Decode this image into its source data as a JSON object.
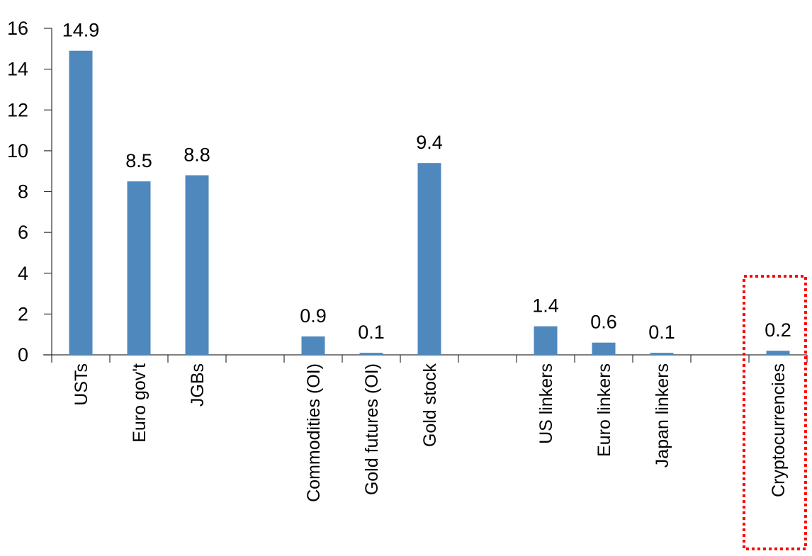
{
  "chart_data": {
    "type": "bar",
    "title": "",
    "xlabel": "",
    "ylabel": "",
    "ylim": [
      0,
      16
    ],
    "yticks": [
      0,
      2,
      4,
      6,
      8,
      10,
      12,
      14,
      16
    ],
    "grid": false,
    "categories": [
      "USTs",
      "Euro gov't",
      "JGBs",
      "",
      "Commodities (OI)",
      "Gold futures (OI)",
      "Gold stock",
      "",
      "US linkers",
      "Euro linkers",
      "Japan linkers",
      "",
      "Cryptocurrencies"
    ],
    "values": [
      14.9,
      8.5,
      8.8,
      null,
      0.9,
      0.1,
      9.4,
      null,
      1.4,
      0.6,
      0.1,
      null,
      0.2
    ],
    "data_labels": [
      "14.9",
      "8.5",
      "8.8",
      "",
      "0.9",
      "0.1",
      "9.4",
      "",
      "1.4",
      "0.6",
      "0.1",
      "",
      "0.2"
    ],
    "bar_color": "#4f88bd",
    "highlight": {
      "category": "Cryptocurrencies",
      "style": "dotted box",
      "color": "#ff0000"
    }
  }
}
